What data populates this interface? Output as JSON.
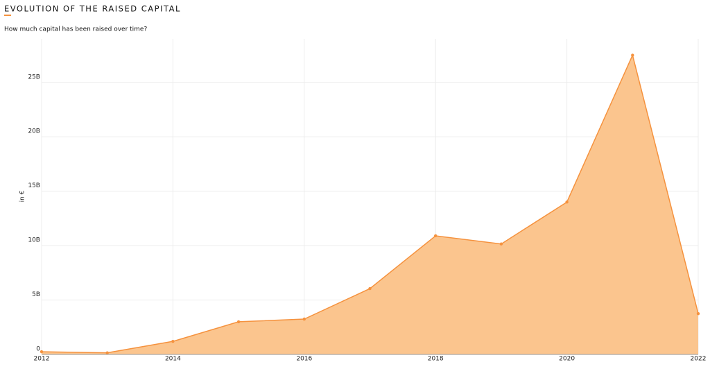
{
  "chart_data": {
    "type": "area",
    "title": "EVOLUTION OF THE RAISED CAPITAL",
    "subtitle": "How much capital has been raised over time?",
    "y_label": "in €",
    "x": [
      2012,
      2013,
      2014,
      2015,
      2016,
      2017,
      2018,
      2019,
      2020,
      2021,
      2022
    ],
    "series": [
      {
        "name": "Raised capital",
        "line_color": "#f5923e",
        "color": "#fbc58e",
        "values": [
          250000000,
          150000000,
          1200000000,
          3000000000,
          3250000000,
          6050000000,
          10900000000,
          10150000000,
          14000000000,
          27500000000,
          3750000000
        ]
      }
    ],
    "xlim": [
      2012,
      2022
    ],
    "xticks": [
      2012,
      2014,
      2016,
      2018,
      2020,
      2022
    ],
    "ylim": [
      0,
      29000000000
    ],
    "yticks": [
      0,
      {
        "value": 5000000000,
        "label": "5B"
      },
      {
        "value": 10000000000,
        "label": "10B"
      },
      {
        "value": 15000000000,
        "label": "15B"
      },
      {
        "value": 20000000000,
        "label": "20B"
      },
      {
        "value": 25000000000,
        "label": "25B"
      }
    ],
    "grid": true
  }
}
